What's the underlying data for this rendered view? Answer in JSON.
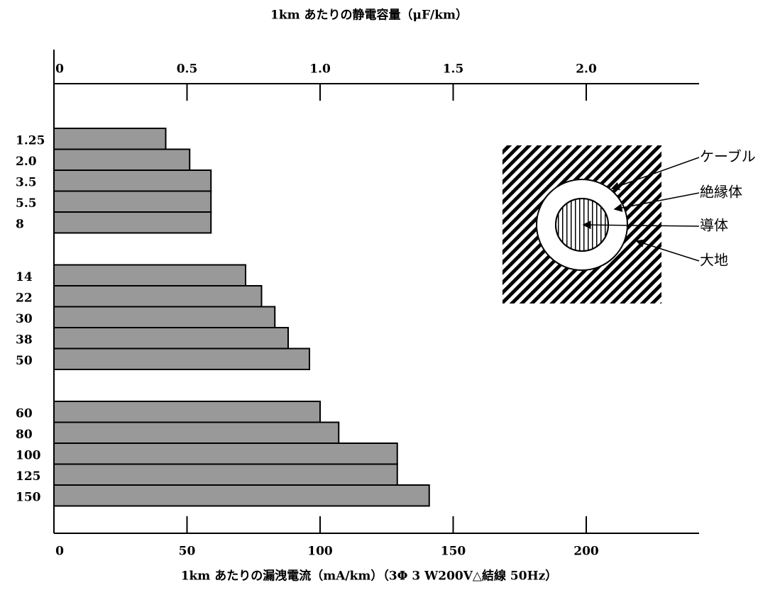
{
  "chart_data": {
    "type": "bar",
    "orientation": "horizontal",
    "title": "1km あたりの静電容量（μF/km）",
    "x_label": "1km あたりの漏洩電流（mA/km）（3Φ 3 W200V△結線  50Hz）",
    "categories": [
      "1.25",
      "2.0",
      "3.5",
      "5.5",
      "8",
      null,
      "14",
      "22",
      "30",
      "38",
      "50",
      null,
      "60",
      "80",
      "100",
      "125",
      "150"
    ],
    "values": [
      42,
      51,
      59,
      59,
      59,
      null,
      72,
      78,
      83,
      88,
      96,
      null,
      100,
      107,
      129,
      129,
      141
    ],
    "color": "#999999",
    "xlim": [
      0,
      242
    ],
    "xticks": [
      0,
      50,
      100,
      150,
      200
    ],
    "x2lim": [
      0,
      2.42
    ],
    "x2ticks": [
      0,
      0.5,
      {
        "value": 1,
        "label": "1.0"
      },
      1.5,
      {
        "value": 2,
        "label": "2.0"
      }
    ],
    "annotations": [
      "ケーブル",
      "絶縁体",
      "導体",
      "大地"
    ]
  }
}
